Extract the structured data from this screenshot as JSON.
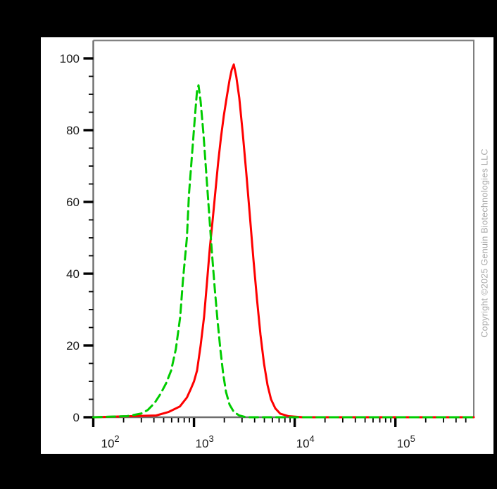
{
  "watermark": {
    "text": "Copyright ©2025 Genuin Biotechnologies LLC",
    "color": "#a9a9a9"
  },
  "colors": {
    "background": "#000000",
    "plot_background": "#ffffff",
    "frame": "#7f7f7f",
    "axis": "#6e6e6e",
    "ticks": "#000000",
    "labels": "#1a1a1a",
    "series_red": "#fe0000",
    "series_green": "#00cc00"
  },
  "chart_data": {
    "type": "line",
    "subtype": "flow-cytometry-histogram-overlay",
    "title": "",
    "xlabel": "",
    "ylabel": "",
    "x_scale": "log10",
    "x_range": [
      100,
      600000
    ],
    "y_range": [
      0,
      105
    ],
    "grid": false,
    "legend_position": "none",
    "x_major_ticks": [
      100,
      1000,
      10000,
      100000
    ],
    "x_major_tick_labels": [
      {
        "base": "10",
        "exp": "2"
      },
      {
        "base": "10",
        "exp": "3"
      },
      {
        "base": "10",
        "exp": "4"
      },
      {
        "base": "10",
        "exp": "5"
      }
    ],
    "x_minor_ticks_rule": "2..9 per decade",
    "y_major_ticks": [
      0,
      20,
      40,
      60,
      80,
      100
    ],
    "y_tick_labels": [
      "0",
      "20",
      "40",
      "60",
      "80",
      "100"
    ],
    "y_minor_step": 5,
    "series": [
      {
        "name": "stained-sample-solid-red",
        "line_style": "solid",
        "color": "#fe0000",
        "peak": {
          "x": 2480,
          "y": 98.3
        },
        "points": [
          [
            100,
            0
          ],
          [
            421,
            0.5
          ],
          [
            562,
            1.5
          ],
          [
            724,
            3
          ],
          [
            851,
            5.5
          ],
          [
            933,
            8
          ],
          [
            1000,
            10
          ],
          [
            1072,
            13
          ],
          [
            1164,
            20
          ],
          [
            1259,
            28
          ],
          [
            1349,
            38
          ],
          [
            1436,
            47
          ],
          [
            1532,
            55
          ],
          [
            1633,
            63
          ],
          [
            1738,
            71
          ],
          [
            1854,
            78
          ],
          [
            1977,
            84
          ],
          [
            2109,
            89
          ],
          [
            2254,
            94
          ],
          [
            2366,
            96.8
          ],
          [
            2483,
            98.3
          ],
          [
            2630,
            95
          ],
          [
            2818,
            89
          ],
          [
            3055,
            79
          ],
          [
            3311,
            68
          ],
          [
            3589,
            56
          ],
          [
            3890,
            44
          ],
          [
            4217,
            33
          ],
          [
            4571,
            23
          ],
          [
            4955,
            15
          ],
          [
            5370,
            9
          ],
          [
            5821,
            5
          ],
          [
            6412,
            2.5
          ],
          [
            7178,
            1
          ],
          [
            8710,
            0.3
          ],
          [
            12000,
            0
          ],
          [
            600000,
            0
          ]
        ]
      },
      {
        "name": "control-dashed-green",
        "line_style": "dashed",
        "color": "#00cc00",
        "peak": {
          "x": 1109,
          "y": 92.5
        },
        "points": [
          [
            100,
            0
          ],
          [
            216,
            0.3
          ],
          [
            297,
            1
          ],
          [
            347,
            2
          ],
          [
            407,
            4
          ],
          [
            465,
            6.5
          ],
          [
            530,
            9.5
          ],
          [
            593,
            13
          ],
          [
            661,
            19
          ],
          [
            730,
            28
          ],
          [
            776,
            38
          ],
          [
            851,
            50
          ],
          [
            891,
            62
          ],
          [
            955,
            73
          ],
          [
            1023,
            84
          ],
          [
            1072,
            91
          ],
          [
            1109,
            92.5
          ],
          [
            1164,
            88
          ],
          [
            1242,
            79
          ],
          [
            1324,
            68
          ],
          [
            1413,
            57
          ],
          [
            1506,
            46
          ],
          [
            1607,
            36
          ],
          [
            1714,
            27
          ],
          [
            1828,
            19
          ],
          [
            1950,
            12
          ],
          [
            2080,
            7
          ],
          [
            2254,
            3.5
          ],
          [
            2483,
            1.5
          ],
          [
            2818,
            0.5
          ],
          [
            3311,
            0
          ],
          [
            600000,
            0
          ]
        ]
      }
    ]
  }
}
